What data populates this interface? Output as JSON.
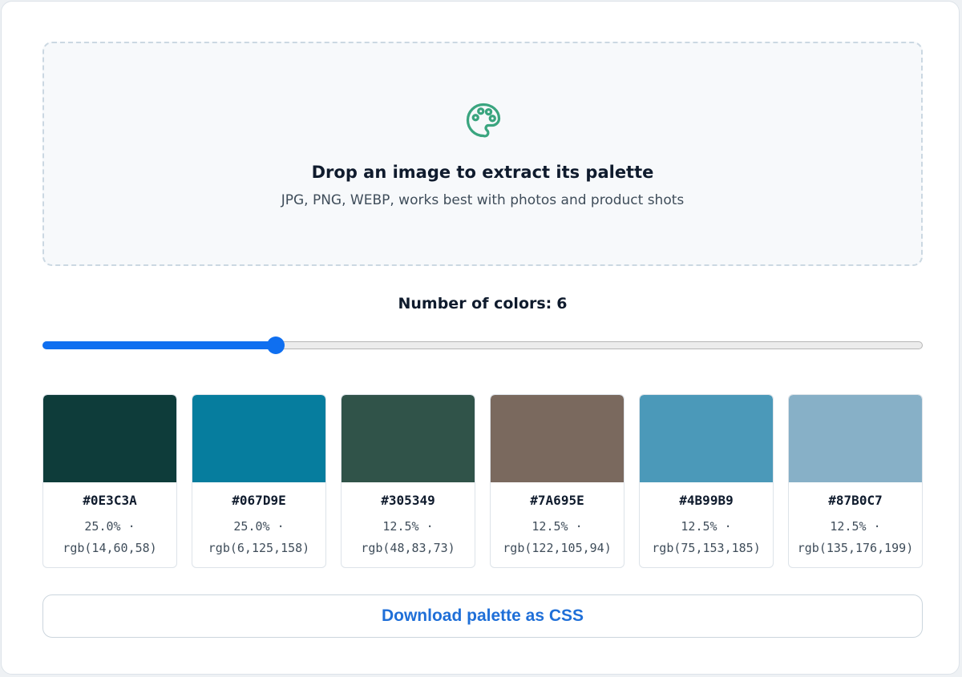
{
  "dropzone": {
    "title": "Drop an image to extract its palette",
    "subtitle": "JPG, PNG, WEBP, works best with photos and product shots",
    "icon": "palette-icon",
    "icon_color": "#3aa57f"
  },
  "count": {
    "label": "Number of colors:",
    "value": "6"
  },
  "slider": {
    "value": 6,
    "fill_fraction": 0.265,
    "accent_color": "#0f6ff0"
  },
  "swatches": [
    {
      "hex": "#0E3C3A",
      "percent": "25.0% ·",
      "rgb": "rgb(14,60,58)"
    },
    {
      "hex": "#067D9E",
      "percent": "25.0% ·",
      "rgb": "rgb(6,125,158)"
    },
    {
      "hex": "#305349",
      "percent": "12.5% ·",
      "rgb": "rgb(48,83,73)"
    },
    {
      "hex": "#7A695E",
      "percent": "12.5% ·",
      "rgb": "rgb(122,105,94)"
    },
    {
      "hex": "#4B99B9",
      "percent": "12.5% ·",
      "rgb": "rgb(75,153,185)"
    },
    {
      "hex": "#87B0C7",
      "percent": "12.5% ·",
      "rgb": "rgb(135,176,199)"
    }
  ],
  "download": {
    "label": "Download palette as CSS",
    "color": "#1f6fd8"
  }
}
